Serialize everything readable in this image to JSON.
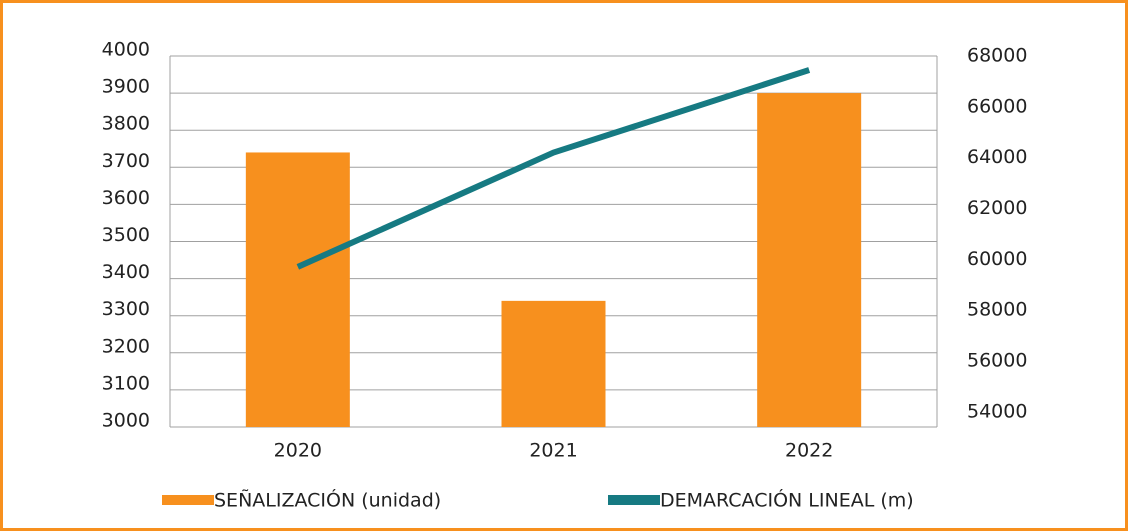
{
  "chart_data": {
    "type": "bar_line",
    "categories": [
      "2020",
      "2021",
      "2022"
    ],
    "series": [
      {
        "name": "SEÑALIZACIÓN (unidad)",
        "color": "#f7901e",
        "type": "bar",
        "values": [
          3740,
          3340,
          3900
        ]
      },
      {
        "name": "DEMARCACIÓN LINEAL (m)",
        "color": "#167a82",
        "type": "line",
        "axis": "y2",
        "values": [
          59700,
          64200,
          67450
        ]
      }
    ],
    "ylim": [
      3000,
      4000
    ],
    "yticks": [
      3000,
      3100,
      3200,
      3300,
      3400,
      3500,
      3600,
      3700,
      3800,
      3900,
      4000
    ],
    "y2lim": [
      53400,
      68000
    ],
    "y2ticks": [
      54000,
      56000,
      58000,
      60000,
      62000,
      64000,
      66000,
      68000
    ],
    "grid": true,
    "legend": "bottom"
  }
}
